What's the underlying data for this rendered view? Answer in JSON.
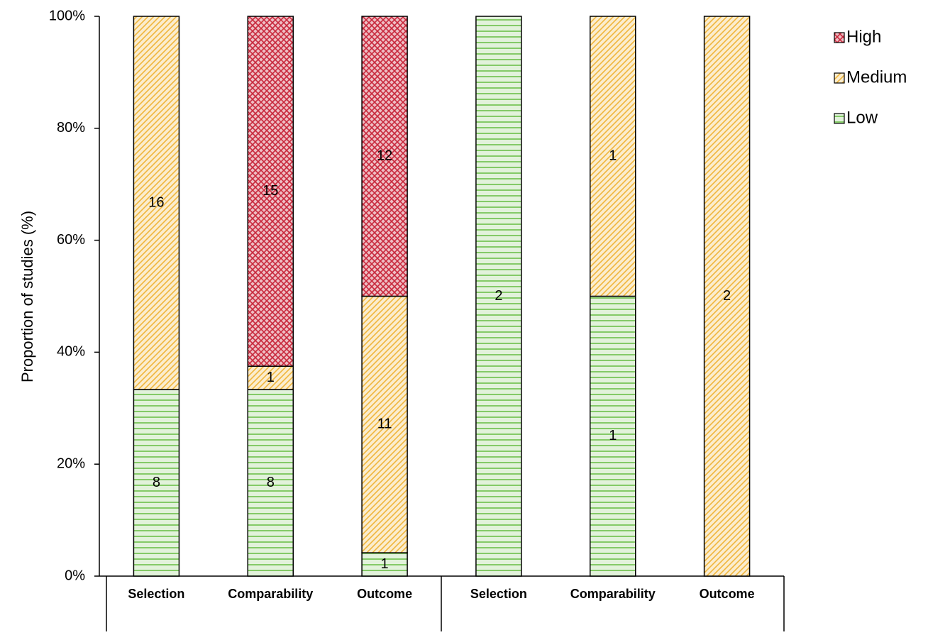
{
  "chart_data": {
    "type": "stacked_bar",
    "y_label": "Proportion of studies (%)",
    "categories": [
      "Selection",
      "Comparability",
      "Outcome",
      "Selection",
      "Comparability",
      "Outcome"
    ],
    "series": [
      {
        "name": "Low",
        "color": "#6cc04a",
        "pattern": "horizontal",
        "values": [
          33.33,
          33.33,
          4.17,
          100,
          50,
          0
        ],
        "counts": [
          8,
          8,
          1,
          2,
          1,
          null
        ]
      },
      {
        "name": "Medium",
        "color": "#f0b63c",
        "pattern": "diagonal",
        "values": [
          66.67,
          4.17,
          45.83,
          0,
          50,
          100
        ],
        "counts": [
          16,
          1,
          11,
          null,
          1,
          2
        ]
      },
      {
        "name": "High",
        "color": "#c8283c",
        "pattern": "crosshatch",
        "values": [
          0,
          62.5,
          50,
          0,
          0,
          0
        ],
        "counts": [
          null,
          15,
          12,
          null,
          null,
          null
        ]
      }
    ],
    "ylim": [
      0,
      100
    ],
    "yticks": [
      {
        "value": 0,
        "label": "0%"
      },
      {
        "value": 20,
        "label": "20%"
      },
      {
        "value": 40,
        "label": "40%"
      },
      {
        "value": 60,
        "label": "60%"
      },
      {
        "value": 80,
        "label": "80%"
      },
      {
        "value": 100,
        "label": "100%"
      }
    ]
  }
}
